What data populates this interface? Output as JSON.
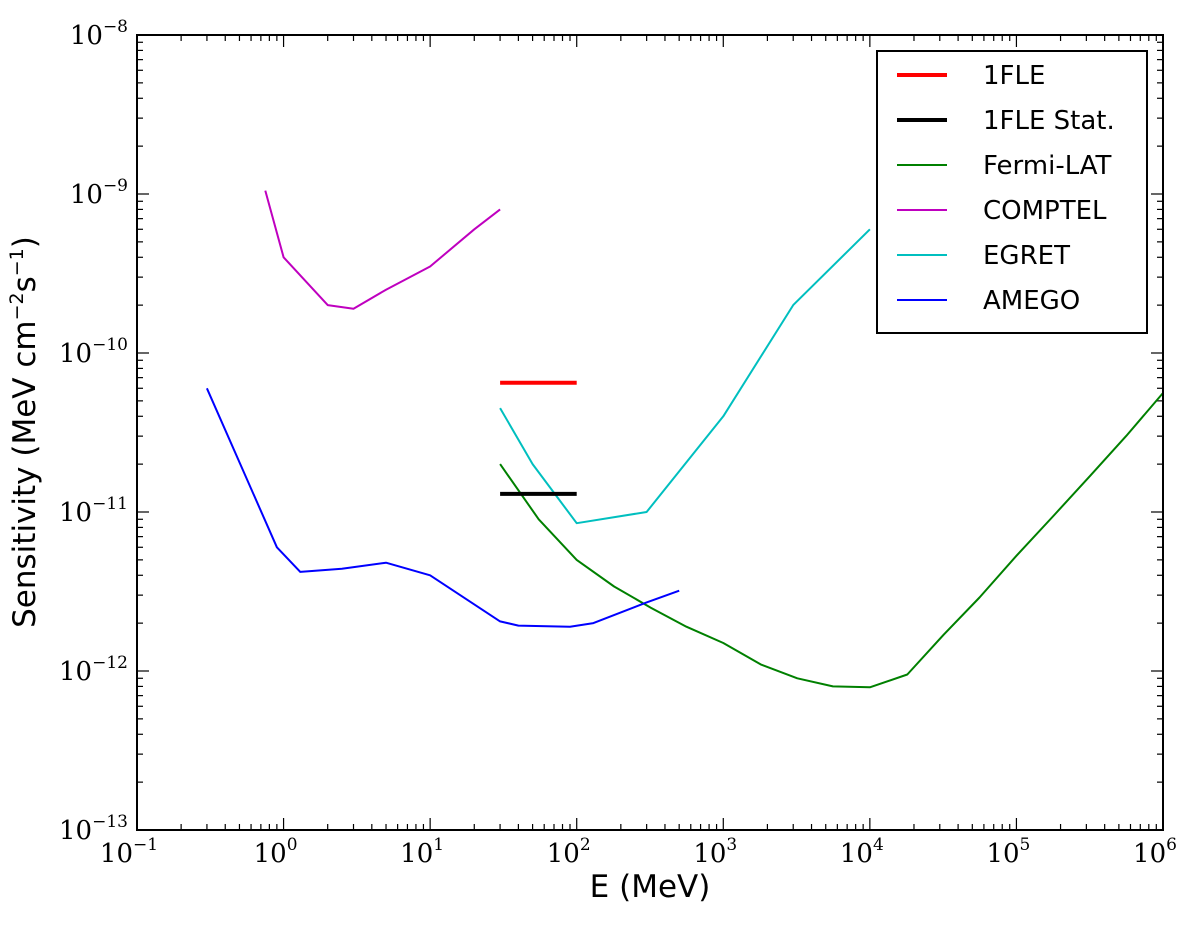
{
  "chart_data": {
    "type": "line",
    "xscale": "log",
    "yscale": "log",
    "xlim": [
      0.1,
      1000000
    ],
    "ylim": [
      1e-13,
      1e-08
    ],
    "xlabel": "E (MeV)",
    "ylabel": "Sensitivity (MeV cm",
    "ylabel_sup1": "−2",
    "ylabel_mid": "s",
    "ylabel_sup2": "−1",
    "ylabel_end": ")",
    "x_ticks": [
      {
        "base": "10",
        "exp": "−1"
      },
      {
        "base": "10",
        "exp": "0"
      },
      {
        "base": "10",
        "exp": "1"
      },
      {
        "base": "10",
        "exp": "2"
      },
      {
        "base": "10",
        "exp": "3"
      },
      {
        "base": "10",
        "exp": "4"
      },
      {
        "base": "10",
        "exp": "5"
      },
      {
        "base": "10",
        "exp": "6"
      }
    ],
    "y_ticks": [
      {
        "base": "10",
        "exp": "−13"
      },
      {
        "base": "10",
        "exp": "−12"
      },
      {
        "base": "10",
        "exp": "−11"
      },
      {
        "base": "10",
        "exp": "−10"
      },
      {
        "base": "10",
        "exp": "−9"
      },
      {
        "base": "10",
        "exp": "−8"
      }
    ],
    "legend_position": "top-right",
    "series": [
      {
        "name": "1FLE",
        "color": "#ff0000",
        "width": 4,
        "points": [
          [
            30,
            6.5e-11
          ],
          [
            100,
            6.5e-11
          ]
        ]
      },
      {
        "name": "1FLE Stat.",
        "color": "#000000",
        "width": 4,
        "points": [
          [
            30,
            1.3e-11
          ],
          [
            100,
            1.3e-11
          ]
        ]
      },
      {
        "name": "Fermi-LAT",
        "color": "#008000",
        "width": 2,
        "points": [
          [
            30,
            2e-11
          ],
          [
            55,
            9e-12
          ],
          [
            100,
            5e-12
          ],
          [
            180,
            3.4e-12
          ],
          [
            320,
            2.5e-12
          ],
          [
            560,
            1.9e-12
          ],
          [
            1000,
            1.5e-12
          ],
          [
            1800,
            1.1e-12
          ],
          [
            3200,
            9e-13
          ],
          [
            5600,
            8e-13
          ],
          [
            10000,
            7.9e-13
          ],
          [
            18000,
            9.5e-13
          ],
          [
            32000,
            1.7e-12
          ],
          [
            56000,
            2.9e-12
          ],
          [
            100000,
            5.3e-12
          ],
          [
            180000,
            9.5e-12
          ],
          [
            320000,
            1.7e-11
          ],
          [
            560000,
            3e-11
          ],
          [
            1000000,
            5.6e-11
          ]
        ]
      },
      {
        "name": "COMPTEL",
        "color": "#bf00bf",
        "width": 2,
        "points": [
          [
            0.75,
            1.05e-09
          ],
          [
            1,
            4e-10
          ],
          [
            2,
            2e-10
          ],
          [
            3,
            1.9e-10
          ],
          [
            5,
            2.5e-10
          ],
          [
            10,
            3.5e-10
          ],
          [
            20,
            6e-10
          ],
          [
            30,
            8e-10
          ]
        ]
      },
      {
        "name": "EGRET",
        "color": "#00bfbf",
        "width": 2,
        "points": [
          [
            30,
            4.5e-11
          ],
          [
            50,
            2e-11
          ],
          [
            100,
            8.5e-12
          ],
          [
            300,
            1e-11
          ],
          [
            1000,
            4e-11
          ],
          [
            3000,
            2e-10
          ],
          [
            10000,
            6e-10
          ]
        ]
      },
      {
        "name": "AMEGO",
        "color": "#0000ff",
        "width": 2,
        "points": [
          [
            0.3,
            6e-11
          ],
          [
            0.9,
            6e-12
          ],
          [
            1.3,
            4.2e-12
          ],
          [
            2.5,
            4.4e-12
          ],
          [
            5,
            4.8e-12
          ],
          [
            10,
            4e-12
          ],
          [
            30,
            2.05e-12
          ],
          [
            40,
            1.93e-12
          ],
          [
            90,
            1.9e-12
          ],
          [
            130,
            2e-12
          ],
          [
            300,
            2.7e-12
          ],
          [
            500,
            3.2e-12
          ]
        ]
      }
    ]
  }
}
